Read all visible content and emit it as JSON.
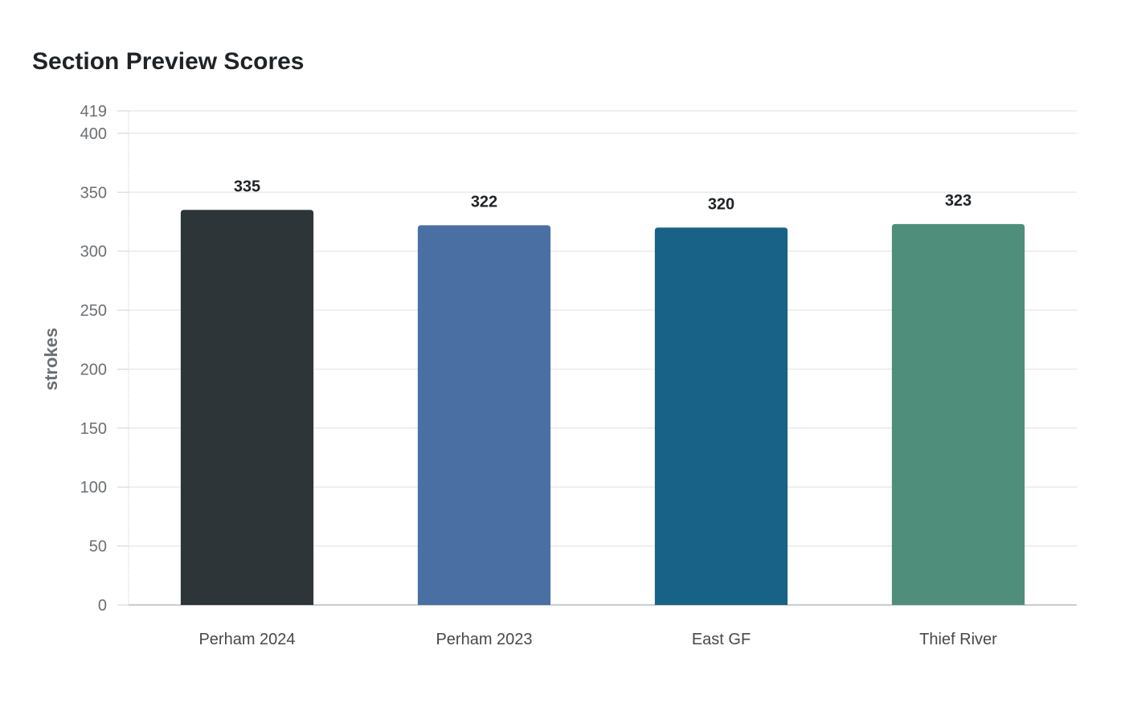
{
  "chart_data": {
    "type": "bar",
    "title": "Section Preview Scores",
    "xlabel": "",
    "ylabel": "strokes",
    "categories": [
      "Perham 2024",
      "Perham 2023",
      "East GF",
      "Thief River"
    ],
    "values": [
      335,
      322,
      320,
      323
    ],
    "ylim": [
      0,
      419
    ],
    "yticks": [
      0,
      50,
      100,
      150,
      200,
      250,
      300,
      350,
      400,
      419
    ],
    "colors": [
      "#2e3538",
      "#4a6fa3",
      "#186287",
      "#4f8e7b"
    ],
    "grid": true,
    "legend": "none"
  }
}
